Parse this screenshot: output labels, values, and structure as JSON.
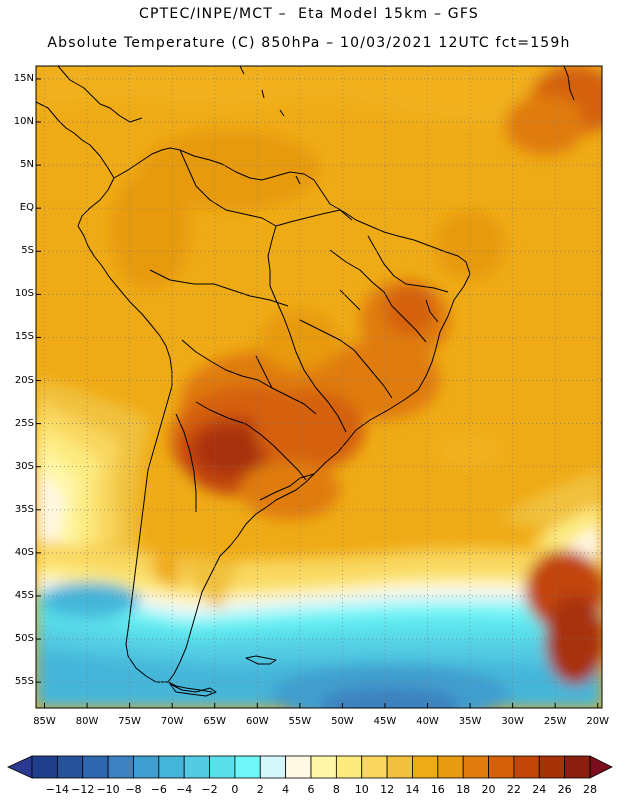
{
  "header": {
    "line1": "CPTEC/INPE/MCT –  Eta Model 15km – GFS",
    "line2": "Absolute Temperature (C) 850hPa – 10/03/2021 12UTC fct=159h"
  },
  "map": {
    "region": "South America",
    "lat_labels": [
      "15N",
      "10N",
      "5N",
      "EQ",
      "5S",
      "10S",
      "15S",
      "20S",
      "25S",
      "30S",
      "35S",
      "40S",
      "45S",
      "50S",
      "55S"
    ],
    "lat_values": [
      15,
      10,
      5,
      0,
      -5,
      -10,
      -15,
      -20,
      -25,
      -30,
      -35,
      -40,
      -45,
      -50,
      -55
    ],
    "lon_labels": [
      "85W",
      "80W",
      "75W",
      "70W",
      "65W",
      "60W",
      "55W",
      "50W",
      "45W",
      "40W",
      "35W",
      "30W",
      "25W",
      "20W"
    ],
    "lon_values": [
      -85,
      -80,
      -75,
      -70,
      -65,
      -60,
      -55,
      -50,
      -45,
      -40,
      -35,
      -30,
      -25,
      -20
    ],
    "lat_range": [
      -58,
      16.5
    ],
    "lon_range": [
      -86,
      -19.5
    ]
  },
  "colorbar": {
    "labels": [
      "−14",
      "−12",
      "−10",
      "−8",
      "−6",
      "−4",
      "−2",
      "0",
      "2",
      "4",
      "6",
      "8",
      "10",
      "12",
      "14",
      "16",
      "18",
      "20",
      "22",
      "24",
      "26",
      "28"
    ],
    "values": [
      -14,
      -12,
      -10,
      -8,
      -6,
      -4,
      -2,
      0,
      2,
      4,
      6,
      8,
      10,
      12,
      14,
      16,
      18,
      20,
      22,
      24,
      26,
      28
    ],
    "colors": [
      "#1f3e8c",
      "#26529a",
      "#2f68ae",
      "#3c82c0",
      "#3f9ecf",
      "#45b6da",
      "#53cbe3",
      "#5ae0eb",
      "#6ff6f7",
      "#d4f6fb",
      "#fff8e4",
      "#fff6a6",
      "#fdeb80",
      "#f9d75f",
      "#f1c13d",
      "#efab16",
      "#e89a10",
      "#e07b0d",
      "#d5600a",
      "#c24509",
      "#a83208",
      "#8a1f0f"
    ],
    "under_color": "#2b3a90",
    "over_color": "#7a0e1c"
  }
}
